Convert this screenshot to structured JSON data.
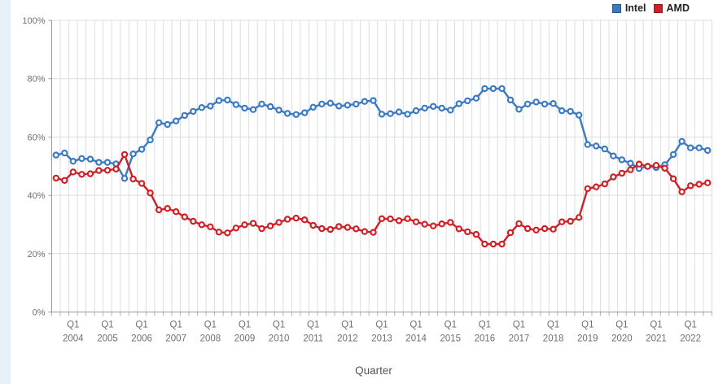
{
  "legend": {
    "items": [
      {
        "label": "Intel",
        "color": "#3b79c2"
      },
      {
        "label": "AMD",
        "color": "#ce2026"
      }
    ]
  },
  "colors": {
    "intel": "#3b79c2",
    "amd": "#ce2026",
    "grid": "#dadde0",
    "axis": "#9a9a9a",
    "tick": "#b5b8ba",
    "label": "#6f6f6f",
    "strip": "#e9f1f8"
  },
  "chart_data": {
    "type": "line",
    "xlabel": "Quarter",
    "ylabel": "",
    "ylim": [
      0,
      100
    ],
    "y_tick_step": 20,
    "y_tick_labels": [
      "0%",
      "20%",
      "40%",
      "60%",
      "80%",
      "100%"
    ],
    "x_quarter_label": "Q1",
    "x_year_labels": [
      2004,
      2005,
      2006,
      2007,
      2008,
      2009,
      2010,
      2011,
      2012,
      2013,
      2014,
      2015,
      2016,
      2017,
      2018,
      2019,
      2020,
      2021,
      2022
    ],
    "grid": "both",
    "legend_position": "top-right",
    "marker": "open-circle",
    "categories": [
      "Q3 2003",
      "Q4 2003",
      "Q1 2004",
      "Q2 2004",
      "Q3 2004",
      "Q4 2004",
      "Q1 2005",
      "Q2 2005",
      "Q3 2005",
      "Q4 2005",
      "Q1 2006",
      "Q2 2006",
      "Q3 2006",
      "Q4 2006",
      "Q1 2007",
      "Q2 2007",
      "Q3 2007",
      "Q4 2007",
      "Q1 2008",
      "Q2 2008",
      "Q3 2008",
      "Q4 2008",
      "Q1 2009",
      "Q2 2009",
      "Q3 2009",
      "Q4 2009",
      "Q1 2010",
      "Q2 2010",
      "Q3 2010",
      "Q4 2010",
      "Q1 2011",
      "Q2 2011",
      "Q3 2011",
      "Q4 2011",
      "Q1 2012",
      "Q2 2012",
      "Q3 2012",
      "Q4 2012",
      "Q1 2013",
      "Q2 2013",
      "Q3 2013",
      "Q4 2013",
      "Q1 2014",
      "Q2 2014",
      "Q3 2014",
      "Q4 2014",
      "Q1 2015",
      "Q2 2015",
      "Q3 2015",
      "Q4 2015",
      "Q1 2016",
      "Q2 2016",
      "Q3 2016",
      "Q4 2016",
      "Q1 2017",
      "Q2 2017",
      "Q3 2017",
      "Q4 2017",
      "Q1 2018",
      "Q2 2018",
      "Q3 2018",
      "Q4 2018",
      "Q1 2019",
      "Q2 2019",
      "Q3 2019",
      "Q4 2019",
      "Q1 2020",
      "Q2 2020",
      "Q3 2020",
      "Q4 2020",
      "Q1 2021",
      "Q2 2021",
      "Q3 2021",
      "Q4 2021",
      "Q1 2022",
      "Q2 2022",
      "Q3 2022"
    ],
    "series": [
      {
        "name": "Intel",
        "color": "#3b79c2",
        "values": [
          53.8,
          54.5,
          51.7,
          52.6,
          52.4,
          51.3,
          51.3,
          50.8,
          45.8,
          54.2,
          55.8,
          59.0,
          64.9,
          64.3,
          65.5,
          67.4,
          68.8,
          70.1,
          70.6,
          72.5,
          72.7,
          71.1,
          69.9,
          69.4,
          71.3,
          70.4,
          69.2,
          68.1,
          67.7,
          68.3,
          70.2,
          71.3,
          71.6,
          70.6,
          70.9,
          71.3,
          72.2,
          72.5,
          67.8,
          68.0,
          68.6,
          67.8,
          69.0,
          69.9,
          70.5,
          69.9,
          69.2,
          71.4,
          72.4,
          73.3,
          76.6,
          76.6,
          76.6,
          72.7,
          69.5,
          71.3,
          72.0,
          71.3,
          71.5,
          69.0,
          68.8,
          67.5,
          57.4,
          56.9,
          55.9,
          53.5,
          52.2,
          51.0,
          49.2,
          50.0,
          49.5,
          50.5,
          54.0,
          58.5,
          56.3,
          56.3,
          55.4
        ]
      },
      {
        "name": "AMD",
        "color": "#ce2026",
        "values": [
          45.9,
          45.1,
          48.0,
          47.2,
          47.4,
          48.5,
          48.6,
          49.0,
          54.0,
          45.6,
          44.1,
          40.8,
          35.0,
          35.5,
          34.4,
          32.6,
          31.1,
          29.9,
          29.2,
          27.4,
          27.1,
          28.8,
          29.9,
          30.4,
          28.6,
          29.5,
          30.7,
          31.8,
          32.2,
          31.6,
          29.7,
          28.6,
          28.3,
          29.3,
          29.0,
          28.5,
          27.6,
          27.3,
          32.0,
          31.9,
          31.3,
          32.0,
          30.9,
          30.1,
          29.5,
          30.2,
          30.7,
          28.5,
          27.5,
          26.6,
          23.3,
          23.3,
          23.3,
          27.2,
          30.3,
          28.6,
          28.1,
          28.6,
          28.4,
          30.9,
          31.1,
          32.4,
          42.3,
          42.9,
          43.9,
          46.3,
          47.6,
          48.8,
          50.7,
          49.9,
          50.3,
          49.3,
          45.7,
          41.2,
          43.3,
          43.8,
          44.3
        ]
      }
    ]
  }
}
